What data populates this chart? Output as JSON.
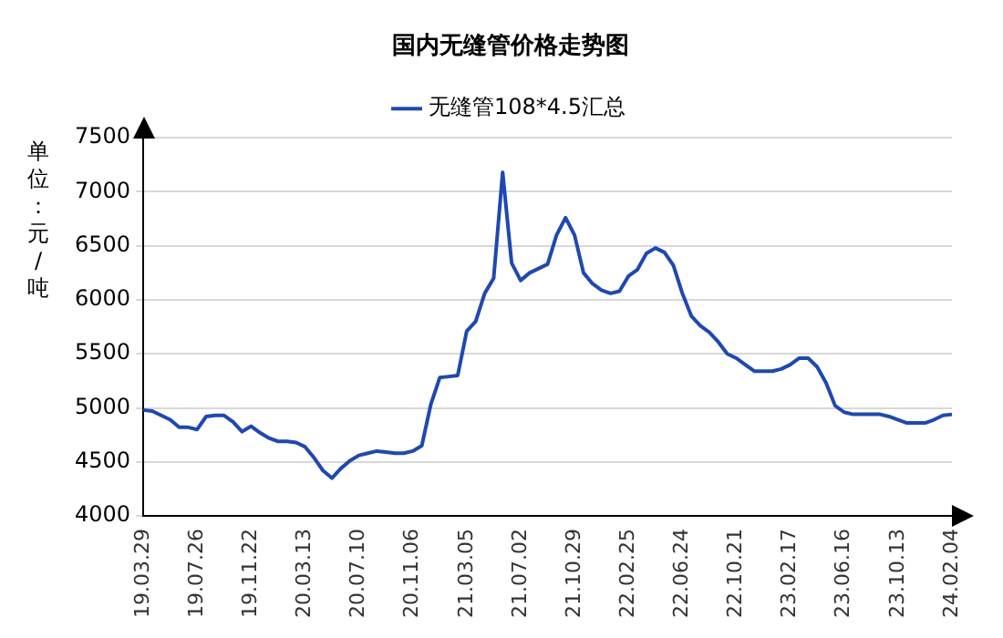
{
  "chart_data": {
    "type": "line",
    "title": "国内无缝管价格走势图",
    "ylabel": "单位：元/吨",
    "legend": "top",
    "grid": "y",
    "categories": [
      "19.03.29",
      null,
      null,
      null,
      null,
      null,
      "19.07.26",
      null,
      null,
      null,
      null,
      null,
      "19.11.22",
      null,
      null,
      null,
      null,
      null,
      "20.03.13",
      null,
      null,
      null,
      null,
      null,
      "20.07.10",
      null,
      null,
      null,
      null,
      null,
      "20.11.06",
      null,
      null,
      null,
      null,
      null,
      "21.03.05",
      null,
      null,
      null,
      null,
      null,
      "21.07.02",
      null,
      null,
      null,
      null,
      null,
      "21.10.29",
      null,
      null,
      null,
      null,
      null,
      "22.02.25",
      null,
      null,
      null,
      null,
      null,
      "22.06.24",
      null,
      null,
      null,
      null,
      null,
      "22.10.21",
      null,
      null,
      null,
      null,
      null,
      "23.02.17",
      null,
      null,
      null,
      null,
      null,
      "23.06.16",
      null,
      null,
      null,
      null,
      null,
      "23.10.13",
      null,
      null,
      null,
      null,
      null,
      "24.02.04"
    ],
    "ylim": [
      4000,
      7500
    ],
    "yticks": [
      4000,
      4500,
      5000,
      5500,
      6000,
      6500,
      7000,
      7500
    ],
    "series": [
      {
        "name": "无缝管108*4.5汇总",
        "color": "#1f48b0",
        "values": [
          4980,
          4970,
          4930,
          4890,
          4820,
          4820,
          4800,
          4920,
          4930,
          4930,
          4870,
          4780,
          4830,
          4770,
          4720,
          4690,
          4690,
          4680,
          4640,
          4540,
          4420,
          4350,
          4440,
          4510,
          4560,
          4580,
          4600,
          4590,
          4580,
          4580,
          4600,
          4650,
          5030,
          5280,
          5290,
          5300,
          5710,
          5800,
          6060,
          6200,
          7180,
          6340,
          6180,
          6250,
          6290,
          6330,
          6600,
          6760,
          6600,
          6250,
          6150,
          6090,
          6060,
          6080,
          6220,
          6280,
          6430,
          6480,
          6440,
          6320,
          6060,
          5850,
          5760,
          5700,
          5610,
          5500,
          5460,
          5400,
          5340,
          5340,
          5340,
          5360,
          5400,
          5460,
          5460,
          5380,
          5230,
          5020,
          4960,
          4940,
          4940,
          4940,
          4940,
          4920,
          4890,
          4860,
          4860,
          4860,
          4890,
          4930,
          4940
        ]
      }
    ]
  }
}
